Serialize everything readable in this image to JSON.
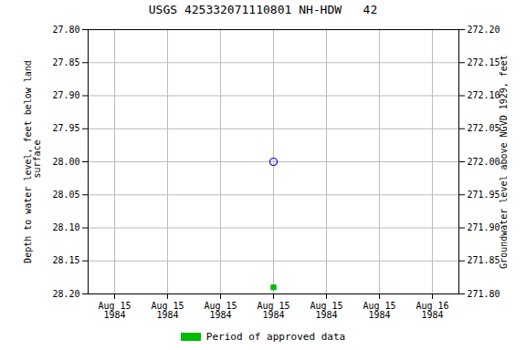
{
  "chart_data": {
    "type": "scatter",
    "title": "USGS 425332071110801 NH-HDW   42",
    "ylabel": "Depth to water level, feet below land\n surface",
    "y2label": "Groundwater level above NGVD 1929, feet",
    "categories": [
      "Aug 15\n1984",
      "Aug 15\n1984",
      "Aug 15\n1984",
      "Aug 15\n1984",
      "Aug 15\n1984",
      "Aug 15\n1984",
      "Aug 16\n1984"
    ],
    "series": [
      {
        "values": [
          null,
          null,
          null,
          28.0,
          null,
          null,
          null
        ],
        "color": "#0000cc",
        "marker": "open_circle"
      },
      {
        "name": "Period of approved data",
        "values": [
          null,
          null,
          null,
          28.19,
          null,
          null,
          null
        ],
        "color": "#00bb00",
        "marker": "square"
      }
    ],
    "ylim": [
      28.2,
      27.8
    ],
    "yticks": [
      {
        "value": 27.8,
        "label": "27.80"
      },
      27.85,
      {
        "value": 27.9,
        "label": "27.90"
      },
      27.95,
      {
        "value": 28.0,
        "label": "28.00"
      },
      28.05,
      {
        "value": 28.1,
        "label": "28.10"
      },
      28.15,
      {
        "value": 28.2,
        "label": "28.20"
      }
    ],
    "y2lim": [
      271.8,
      272.2
    ],
    "y2ticks": [
      {
        "value": 271.8,
        "label": "271.80"
      },
      271.85,
      {
        "value": 271.9,
        "label": "271.90"
      },
      271.95,
      {
        "value": 272.0,
        "label": "272.00"
      },
      272.05,
      {
        "value": 272.1,
        "label": "272.10"
      },
      272.15,
      {
        "value": 272.2,
        "label": "272.20"
      }
    ],
    "grid": true,
    "legend": "bottom"
  }
}
